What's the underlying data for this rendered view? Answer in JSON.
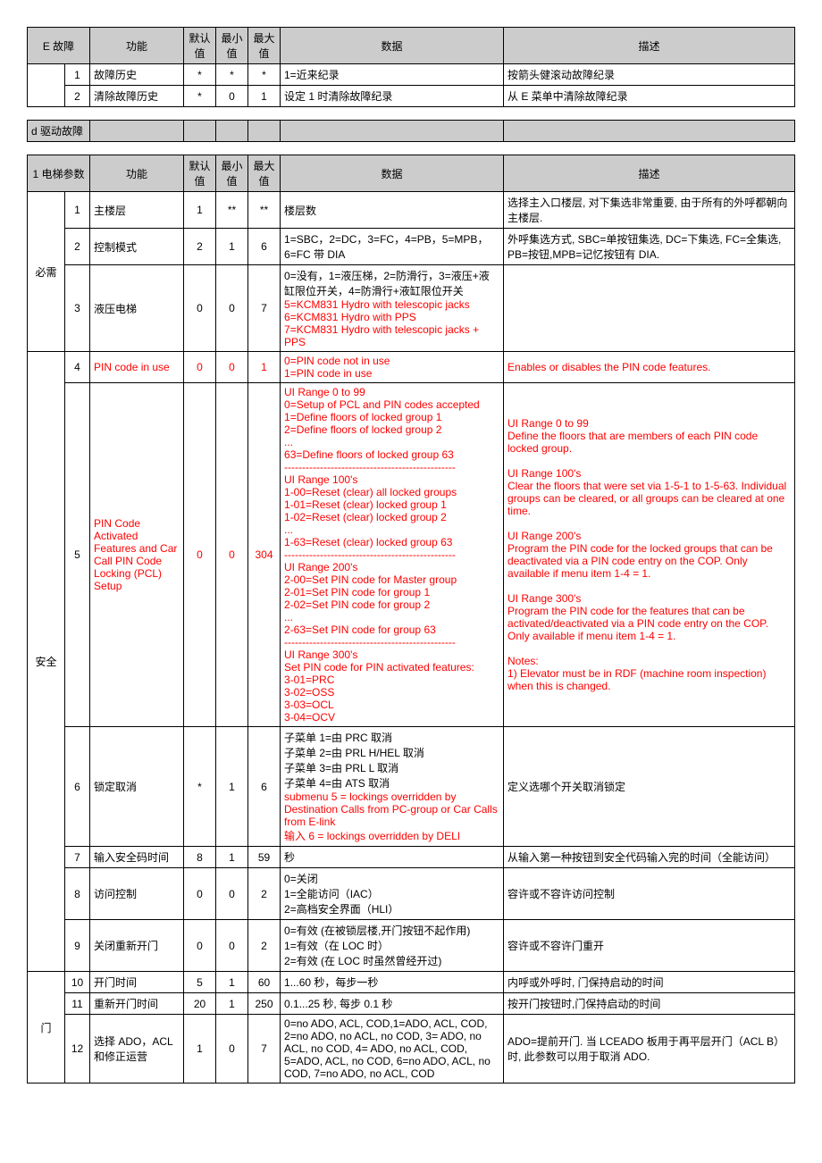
{
  "tableE": {
    "headers": [
      "E 故障",
      "功能",
      "默认值",
      "最小值",
      "最大值",
      "数据",
      "描述"
    ],
    "rows": [
      {
        "idx": "1",
        "fn": "故障历史",
        "def": "*",
        "min": "*",
        "max": "*",
        "data": "1=近来纪录",
        "desc": "按箭头健滚动故障纪录"
      },
      {
        "idx": "2",
        "fn": "清除故障历史",
        "def": "*",
        "min": "0",
        "max": "1",
        "data": "设定 1 时清除故障纪录",
        "desc": "从 E 菜单中清除故障纪录"
      }
    ]
  },
  "tableD": {
    "header": "d 驱动故障"
  },
  "table1": {
    "headers": [
      "1 电梯参数",
      "功能",
      "默认值",
      "最小值",
      "最大值",
      "数据",
      "描述"
    ],
    "groups": [
      {
        "label": "必需",
        "rows": [
          {
            "idx": "1",
            "fn": "主楼层",
            "def": "1",
            "min": "**",
            "max": "**",
            "data": "楼层数",
            "desc": "选择主入口楼层, 对下集选非常重要, 由于所有的外呼都朝向主楼层."
          },
          {
            "idx": "2",
            "fn": "控制模式",
            "def": "2",
            "min": "1",
            "max": "6",
            "data": "1=SBC，2=DC，3=FC，4=PB，5=MPB，6=FC 带 DIA",
            "desc": "外呼集选方式, SBC=单按钮集选, DC=下集选, FC=全集选, PB=按钮,MPB=记忆按钮有 DIA."
          },
          {
            "idx": "3",
            "fn": "液压电梯",
            "def": "0",
            "min": "0",
            "max": "7",
            "data": "0=没有，1=液压梯，2=防滑行，3=液压+液缸限位开关，4=防滑行+液缸限位开关\n5=KCM831 Hydro with telescopic jacks\n6=KCM831 Hydro with PPS\n7=KCM831 Hydro with telescopic jacks + PPS",
            "desc": "",
            "redData": [
              1,
              2,
              3,
              4
            ]
          }
        ]
      },
      {
        "label": "安全",
        "rows": [
          {
            "idx": "4",
            "fn": "PIN code in use",
            "def": "0",
            "min": "0",
            "max": "1",
            "data": "0=PIN code not in use\n1=PIN code in use",
            "desc": "Enables or disables the PIN code features.",
            "allRed": true
          },
          {
            "idx": "5",
            "fn": "PIN Code Activated Features and Car Call PIN Code Locking (PCL) Setup",
            "def": "0",
            "min": "0",
            "max": "304",
            "data": "UI Range 0 to 99\n0=Setup of PCL and PIN codes accepted\n1=Define floors of locked group 1\n2=Define floors of locked group 2\n...\n63=Define floors of locked group 63\n------------------------------------------------\nUI Range 100's\n1-00=Reset (clear) all locked groups\n1-01=Reset (clear) locked group 1\n1-02=Reset (clear) locked group 2\n...\n1-63=Reset (clear) locked group 63\n------------------------------------------------\nUI Range 200's\n2-00=Set PIN code for Master group\n2-01=Set PIN code for group 1\n2-02=Set PIN code for group 2\n...\n2-63=Set PIN code for group 63\n------------------------------------------------\nUI Range 300's\nSet PIN code for PIN activated features:\n3-01=PRC\n3-02=OSS\n3-03=OCL\n3-04=OCV",
            "desc": "UI Range 0 to 99\nDefine the floors that are members of each PIN code locked group.\n\nUI Range 100's\nClear the floors that were set via 1-5-1 to 1-5-63. Individual groups can be cleared, or all groups can be cleared at one time.\n\nUI Range 200's\nProgram the PIN code for the locked groups that can be deactivated via a PIN code entry on the COP.  Only available if menu item 1-4 = 1.\n\nUI Range 300's\nProgram the PIN code for the features that can be activated/deactivated via a PIN code entry on the COP. Only available if menu item 1-4 = 1.\n\nNotes:\n1) Elevator must be in RDF (machine room inspection) when this is changed.",
            "allRed": true
          },
          {
            "idx": "6",
            "fn": "锁定取消",
            "def": "*",
            "min": "1",
            "max": "6",
            "data": "子菜单 1=由 PRC 取消\n子菜单 2=由 PRL H/HEL 取消\n子菜单 3=由 PRL L 取消\n子菜单 4=由 ATS 取消\nsubmenu 5 = lockings overridden by Destination Calls from PC-group or Car Calls from E-link\n输入 6 = lockings overridden by DELI",
            "desc": "定义选哪个开关取消锁定",
            "redData": [
              4,
              5
            ]
          },
          {
            "idx": "7",
            "fn": "输入安全码时间",
            "def": "8",
            "min": "1",
            "max": "59",
            "data": "秒",
            "desc": "从输入第一种按钮到安全代码输入完的时间（全能访问）"
          },
          {
            "idx": "8",
            "fn": "访问控制",
            "def": "0",
            "min": "0",
            "max": "2",
            "data": "0=关闭\n1=全能访问（IAC）\n2=高档安全界面（HLI）",
            "desc": "容许或不容许访问控制"
          },
          {
            "idx": "9",
            "fn": "关闭重新开门",
            "def": "0",
            "min": "0",
            "max": "2",
            "data": "0=有效 (在被锁层楼,开门按钮不起作用)\n1=有效（在 LOC 时）\n2=有效 (在 LOC 时虽然曾经开过)",
            "desc": "容许或不容许门重开"
          }
        ]
      },
      {
        "label": "门",
        "rows": [
          {
            "idx": "10",
            "fn": "开门时间",
            "def": "5",
            "min": "1",
            "max": "60",
            "data": "1...60 秒，每步一秒",
            "desc": "内呼或外呼时, 门保持启动的时间"
          },
          {
            "idx": "11",
            "fn": "重新开门时间",
            "def": "20",
            "min": "1",
            "max": "250",
            "data": "0.1...25 秒, 每步 0.1 秒",
            "desc": "按开门按钮时,门保持启动的时间"
          },
          {
            "idx": "12",
            "fn": "选择 ADO，ACL 和修正运营",
            "def": "1",
            "min": "0",
            "max": "7",
            "data": "0=no ADO, ACL, COD,1=ADO, ACL, COD, 2=no ADO, no ACL, no COD, 3= ADO, no ACL, no COD, 4= ADO, no ACL, COD, 5=ADO, ACL, no COD, 6=no ADO, ACL, no COD, 7=no ADO, no ACL, COD",
            "desc": "ADO=提前开门. 当 LCEADO 板用于再平层开门（ACL B）时, 此参数可以用于取消 ADO."
          }
        ]
      }
    ]
  }
}
